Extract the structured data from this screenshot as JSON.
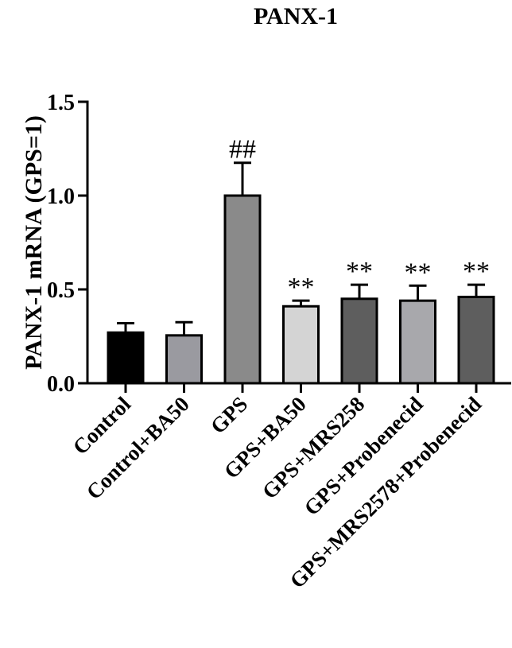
{
  "chart_data": {
    "type": "bar",
    "title": "PANX-1",
    "xlabel": "",
    "ylabel": "PANX-1 mRNA (GPS=1)",
    "ylim": [
      0,
      1.5
    ],
    "yticks": [
      "0.0",
      "0.5",
      "1.0",
      "1.5"
    ],
    "categories": [
      "Control",
      "Control+BA50",
      "GPS",
      "GPS+BA50",
      "GPS+MRS258",
      "GPS+Probenecid",
      "GPS+MRS2578+Probenecid"
    ],
    "values": [
      0.27,
      0.255,
      1.0,
      0.41,
      0.45,
      0.44,
      0.46
    ],
    "errors": [
      0.05,
      0.07,
      0.175,
      0.03,
      0.075,
      0.08,
      0.065
    ],
    "annotations": [
      "",
      "",
      "##",
      "**",
      "**",
      "**",
      "**"
    ],
    "colors": [
      "#000000",
      "#9a9aa0",
      "#8a8a8a",
      "#d4d4d4",
      "#5e5e5e",
      "#a8a8ac",
      "#5e5e5e"
    ],
    "grid": false
  }
}
